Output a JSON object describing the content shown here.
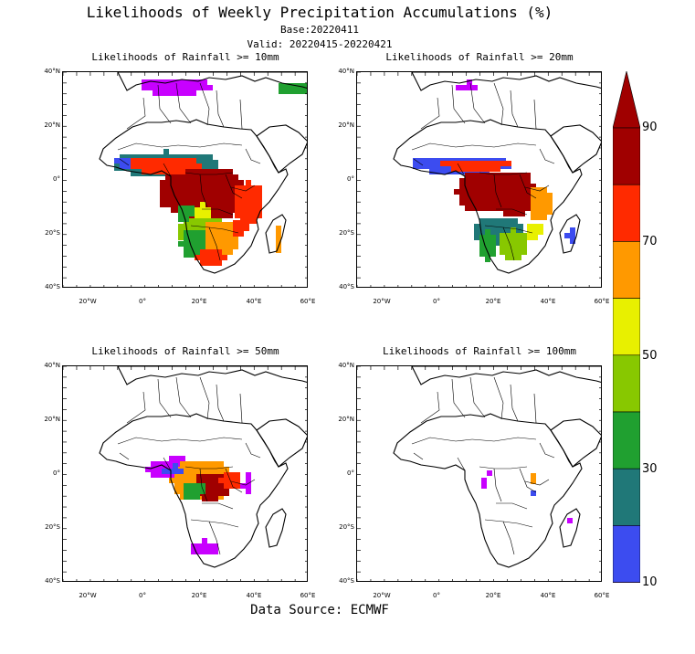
{
  "header": {
    "title": "Likelihoods of Weekly Precipitation Accumulations (%)",
    "base": "Base:20220411",
    "valid": "Valid: 20220415-20220421"
  },
  "panels": [
    {
      "title": "Likelihoods of Rainfall >= 10mm"
    },
    {
      "title": "Likelihoods of Rainfall >= 20mm"
    },
    {
      "title": "Likelihoods of Rainfall >= 50mm"
    },
    {
      "title": "Likelihoods of Rainfall >= 100mm"
    }
  ],
  "axes": {
    "lat_labels": [
      "40°N",
      "20°N",
      "0°",
      "20°S",
      "40°S"
    ],
    "lon_labels": [
      "20°W",
      "0°",
      "20°E",
      "40°E",
      "60°E"
    ]
  },
  "colorbar": {
    "labels": [
      "90",
      "70",
      "50",
      "30",
      "10"
    ],
    "colors": [
      "#a00000",
      "#ff2a00",
      "#ff9900",
      "#e8f000",
      "#88c800",
      "#20a030",
      "#207878",
      "#3c4cf0",
      "#c800ff"
    ]
  },
  "footer": {
    "source": "Data Source: ECMWF"
  }
}
